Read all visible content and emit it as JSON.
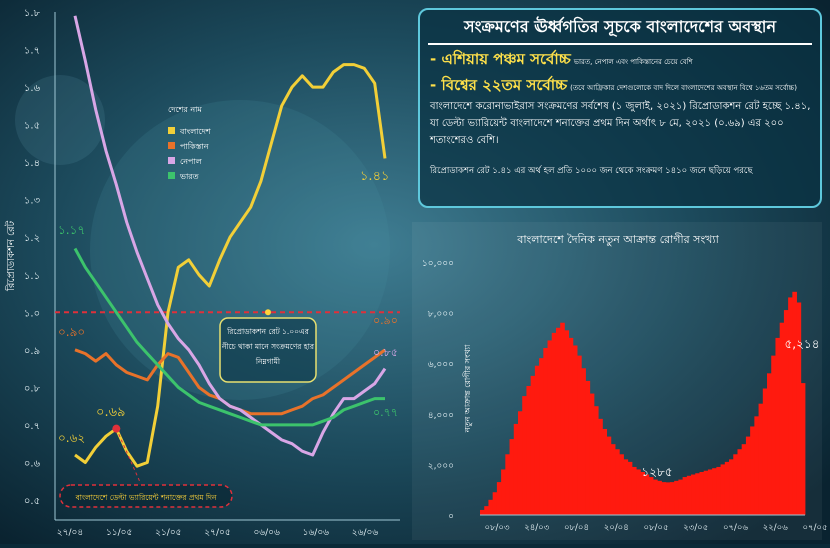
{
  "panel": {
    "title": "সংক্রমণের ঊর্ধ্বগতির সূচকে বাংলাদেশের অবস্থান",
    "bullet1": "- এশিয়ায় পঞ্চম সর্বোচ্চ",
    "bullet1_note": "ভারত, নেপাল এবং পাকিস্তানের চেয়ে বেশি",
    "bullet2": "- বিশ্বের ২২তম সর্বোচ্চ",
    "bullet2_note": "(তবে আফ্রিকার দেশগুলোকে বাদ দিলে বাংলাদেশের অবস্থান বিশ্বে ১৬তম সর্বোচ্চ)",
    "paragraph": "বাংলাদেশে করোনাভাইরাস সংক্রমণের সর্বশেষ (১ জুলাই, ২০২১) রিপ্রোডাকশন রেট হচ্ছে ১.৪১, যা ডেল্টা ভ্যারিয়েন্ট বাংলাদেশে শনাক্তের প্রথম দিন অর্থাৎ ৮ মে, ২০২১ (০.৬৯) এর ২০০ শতাংশেরও বেশি।",
    "footnote": "রিপ্রোডাকশন রেট ১.৪১ এর অর্থ হল প্রতি ১০০০ জন থেকে সংক্রমণ ১৪১০ জনে ছড়িয়ে পরছে"
  },
  "chart_data": [
    {
      "type": "line",
      "title": "",
      "ylabel": "রিপ্রোডাকশন রেট",
      "ylim": [
        0.5,
        1.8
      ],
      "y_ticks": [
        "০.৫",
        "০.৬",
        "০.৭",
        "০.৮",
        "০.৯",
        "১.০",
        "১.১",
        "১.২",
        "১.৩",
        "১.৪",
        "১.৫",
        "১.৬",
        "১.৭",
        "১.৮"
      ],
      "x_ticks": [
        "২৭/০৪",
        "১১/০৫",
        "২১/০৫",
        "২৭/০৫",
        "০৬/০৬",
        "১৬/০৬",
        "২৬/০৬"
      ],
      "legend_title": "দেশের নাম",
      "legend_position": "upper-middle",
      "threshold": 1.0,
      "grid": false,
      "series": [
        {
          "name": "বাংলাদেশ",
          "color": "#f2cf38",
          "values": [
            0.62,
            0.6,
            0.64,
            0.67,
            0.69,
            0.63,
            0.59,
            0.6,
            0.75,
            1.0,
            1.12,
            1.14,
            1.1,
            1.07,
            1.14,
            1.2,
            1.24,
            1.28,
            1.35,
            1.45,
            1.55,
            1.6,
            1.63,
            1.6,
            1.6,
            1.64,
            1.66,
            1.66,
            1.65,
            1.61,
            1.41
          ]
        },
        {
          "name": "পাকিস্তান",
          "color": "#e8722a",
          "values": [
            0.9,
            0.89,
            0.87,
            0.89,
            0.86,
            0.84,
            0.83,
            0.82,
            0.86,
            0.89,
            0.88,
            0.84,
            0.8,
            0.78,
            0.77,
            0.75,
            0.74,
            0.73,
            0.73,
            0.73,
            0.73,
            0.74,
            0.75,
            0.77,
            0.78,
            0.8,
            0.82,
            0.84,
            0.86,
            0.88,
            0.9
          ]
        },
        {
          "name": "নেপাল",
          "color": "#d8a6e6",
          "values": [
            1.79,
            1.67,
            1.54,
            1.43,
            1.34,
            1.24,
            1.16,
            1.09,
            1.02,
            0.97,
            0.93,
            0.9,
            0.86,
            0.81,
            0.77,
            0.75,
            0.74,
            0.72,
            0.7,
            0.68,
            0.66,
            0.65,
            0.63,
            0.62,
            0.68,
            0.73,
            0.77,
            0.77,
            0.79,
            0.81,
            0.85
          ]
        },
        {
          "name": "ভারত",
          "color": "#3cc36c",
          "values": [
            1.17,
            1.12,
            1.08,
            1.04,
            1.0,
            0.96,
            0.92,
            0.89,
            0.86,
            0.83,
            0.8,
            0.78,
            0.76,
            0.75,
            0.74,
            0.73,
            0.72,
            0.71,
            0.7,
            0.7,
            0.7,
            0.7,
            0.7,
            0.7,
            0.71,
            0.72,
            0.74,
            0.75,
            0.76,
            0.77,
            0.77
          ]
        }
      ],
      "annotations": {
        "start_value": "০.৬২",
        "delta_peak": "০.৬৯",
        "last_value": "১.৪১",
        "pak_start": "০.৯০",
        "ind_start": "১.১৭",
        "threshold_label": "০.৯০",
        "nep_end": "০.৮৫",
        "ind_end": "০.৭৭",
        "threshold_note": [
          "রিপ্রোডাকশন রেট ১.০০এর",
          "নীচে থাকা মানে সংক্রমণের হার",
          "নিম্নগামী"
        ],
        "delta_note": "বাংলাদেশে ডেল্টা ভ্যারিয়েন্ট শনাক্তের প্রথম দিন"
      }
    },
    {
      "type": "bar",
      "title": "বাংলাদেশে দৈনিক নতুন আক্রান্ত রোগীর সংখ্যা",
      "ylabel": "নতুন আক্রান্ত রোগীর সংখ্যা",
      "ylim": [
        0,
        10000
      ],
      "y_ticks": [
        "০",
        "২,০০০",
        "৪,০০০",
        "৬,০০০",
        "৮,০০০",
        "১০,০০০"
      ],
      "x_ticks": [
        "০৮/০৩",
        "২৪/০৩",
        "০৮/০৪",
        "২০/০৪",
        "০৮/০৫",
        "২৩/০৫",
        "০৭/০৬",
        "২২/০৬",
        "০৭/০৫"
      ],
      "color": "#ff1a0f",
      "annotations": {
        "min_label": "১২৮৫",
        "last_label": "৫,২১৪"
      },
      "values": [
        200,
        350,
        600,
        900,
        1300,
        1800,
        2400,
        3000,
        3600,
        4100,
        4700,
        5100,
        5500,
        5900,
        6200,
        6600,
        6900,
        7200,
        7400,
        7600,
        7300,
        7000,
        6700,
        6300,
        5800,
        5300,
        4800,
        4300,
        3800,
        3400,
        3100,
        2800,
        2600,
        2400,
        2200,
        2100,
        1900,
        1800,
        1700,
        1600,
        1500,
        1400,
        1350,
        1300,
        1290,
        1300,
        1350,
        1400,
        1500,
        1550,
        1600,
        1650,
        1700,
        1750,
        1800,
        1850,
        1900,
        2000,
        2100,
        2200,
        2400,
        2600,
        2800,
        3100,
        3500,
        3900,
        4400,
        5000,
        5600,
        6300,
        7000,
        7600,
        8100,
        8600,
        8822,
        8400,
        5214
      ]
    }
  ]
}
